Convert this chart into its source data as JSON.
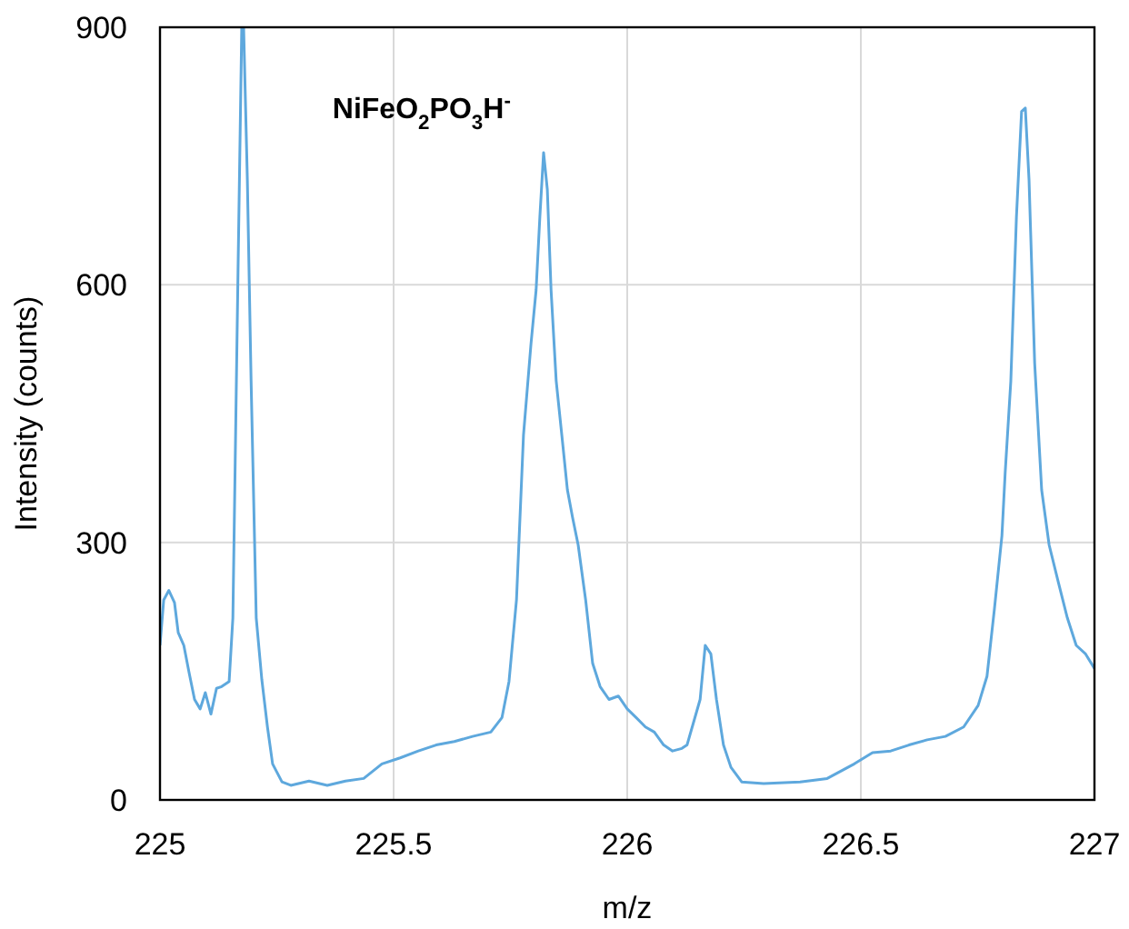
{
  "chart_data": {
    "type": "line",
    "title": "NiFeO$_{2}$PO$_{3}$H$^{-}$",
    "xlabel": "m/z",
    "ylabel": "Intensity (counts)",
    "xlim": [
      225,
      227
    ],
    "xticks": [
      225,
      225.5,
      226,
      226.5,
      227
    ],
    "ylim": [
      0,
      900
    ],
    "yticks": [
      0,
      300,
      600,
      900
    ],
    "grid": true,
    "marker": "none",
    "line_style": "solid",
    "series": [
      {
        "color": "#5ea8dd",
        "x": [
          225,
          225.008,
          225.019,
          225.031,
          225.039,
          225.051,
          225.062,
          225.074,
          225.086,
          225.097,
          225.109,
          225.121,
          225.132,
          225.148,
          225.156,
          225.167,
          225.175,
          225.179,
          225.187,
          225.195,
          225.206,
          225.218,
          225.23,
          225.241,
          225.261,
          225.28,
          225.319,
          225.358,
          225.397,
          225.436,
          225.475,
          225.514,
          225.553,
          225.591,
          225.63,
          225.669,
          225.708,
          225.732,
          225.747,
          225.763,
          225.778,
          225.794,
          225.805,
          225.813,
          225.821,
          225.829,
          225.837,
          225.848,
          225.86,
          225.872,
          225.883,
          225.895,
          225.911,
          225.926,
          225.942,
          225.961,
          225.981,
          226,
          226.019,
          226.039,
          226.058,
          226.078,
          226.097,
          226.117,
          226.128,
          226.156,
          226.167,
          226.179,
          226.191,
          226.206,
          226.222,
          226.245,
          226.292,
          226.37,
          226.428,
          226.486,
          226.525,
          226.564,
          226.603,
          226.642,
          226.681,
          226.72,
          226.751,
          226.77,
          226.786,
          226.802,
          226.809,
          226.821,
          226.833,
          226.844,
          226.852,
          226.86,
          226.872,
          226.887,
          226.903,
          226.922,
          226.942,
          226.961,
          226.981,
          227
        ],
        "values": [
          180,
          233,
          244,
          230,
          195,
          180,
          149,
          117,
          106,
          125,
          100,
          130,
          132,
          138,
          212,
          615,
          900,
          900,
          722,
          488,
          212,
          140,
          85,
          42,
          21,
          17,
          22,
          17,
          22,
          25,
          42,
          49,
          57,
          64,
          68,
          74,
          79,
          96,
          138,
          233,
          425,
          531,
          594,
          679,
          754,
          711,
          594,
          488,
          425,
          361,
          329,
          297,
          233,
          159,
          132,
          117,
          121,
          106,
          96,
          85,
          79,
          64,
          57,
          60,
          64,
          117,
          180,
          170,
          117,
          64,
          38,
          21,
          19,
          21,
          25,
          42,
          55,
          57,
          64,
          70,
          74,
          85,
          110,
          144,
          223,
          308,
          382,
          488,
          679,
          802,
          806,
          722,
          509,
          361,
          297,
          255,
          212,
          180,
          170,
          153
        ]
      }
    ]
  }
}
